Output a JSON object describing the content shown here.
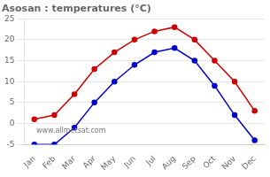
{
  "chart_data": {
    "type": "line",
    "title": "Asosan : temperatures (°C)",
    "categories": [
      "Jan",
      "Feb",
      "Mar",
      "Apr",
      "May",
      "Jun",
      "Jul",
      "Aug",
      "Sep",
      "Oct",
      "Nov",
      "Dec"
    ],
    "series": [
      {
        "color": "#cc0000",
        "values": [
          1,
          2,
          7,
          13,
          17,
          20,
          22,
          23,
          20,
          15,
          10,
          3
        ]
      },
      {
        "color": "#0000cc",
        "values": [
          -5,
          -5,
          -1,
          5,
          10,
          14,
          17,
          18,
          15,
          9,
          2,
          -4
        ]
      }
    ],
    "marker": "circle",
    "ylim": [
      -5,
      25
    ],
    "yticks": [
      -5,
      0,
      5,
      10,
      15,
      20,
      25
    ],
    "grid": "y",
    "annotations": [
      "www.allmetsat.com"
    ]
  }
}
